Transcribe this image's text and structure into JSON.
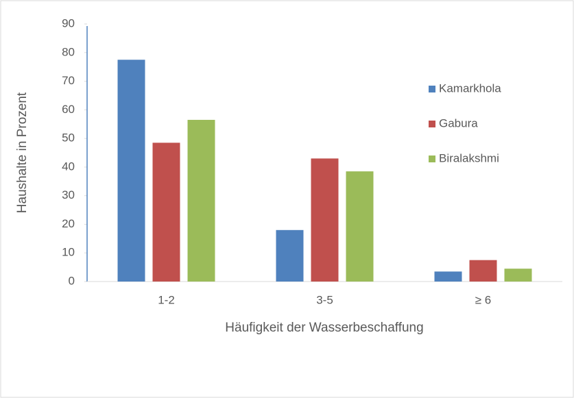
{
  "chart_data": {
    "type": "bar",
    "y_label": "Haushalte in Prozent",
    "x_label": "Häufigkeit der Wasserbeschaffung",
    "categories": [
      "1-2",
      "3-5",
      "≥ 6"
    ],
    "series": [
      {
        "name": "Kamarkhola",
        "color": "#4f81bd",
        "values": [
          77.5,
          18,
          3.5
        ]
      },
      {
        "name": "Gabura",
        "color": "#c0504d",
        "values": [
          48.5,
          43,
          7.5
        ]
      },
      {
        "name": "Biralakshmi",
        "color": "#9bbb59",
        "values": [
          56.5,
          38.5,
          4.5
        ]
      }
    ],
    "ylim": [
      0,
      90
    ],
    "yticks": [
      0,
      10,
      20,
      30,
      40,
      50,
      60,
      70,
      80,
      90
    ],
    "grid": false,
    "legend": "right"
  }
}
